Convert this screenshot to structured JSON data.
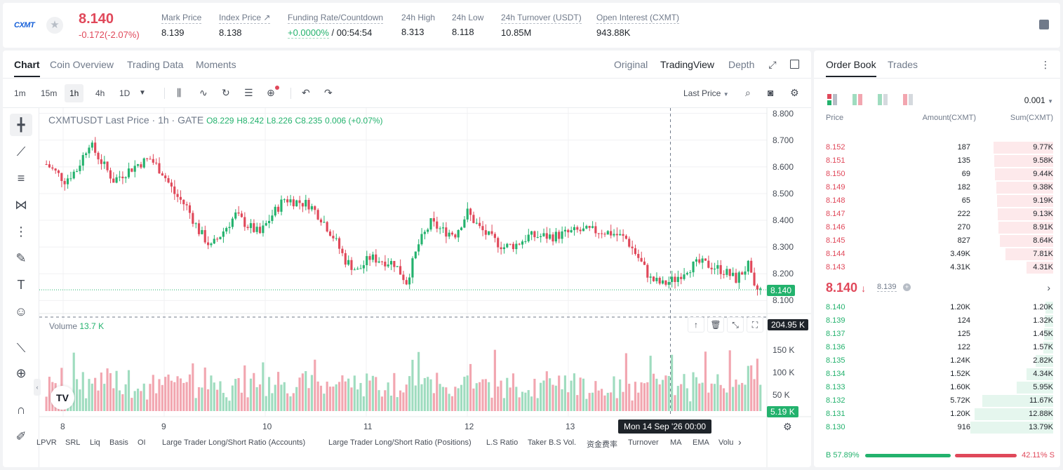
{
  "header": {
    "logo": "CXMT",
    "last_price": "8.140",
    "change": "-0.172(-2.07%)",
    "stats": [
      {
        "label": "Mark Price",
        "value": "8.139"
      },
      {
        "label": "Index Price ↗",
        "value": "8.138"
      },
      {
        "label": "Funding Rate/Countdown",
        "value": "+0.0000%",
        "value2": "/ 00:54:54"
      },
      {
        "label": "24h High",
        "value": "8.313"
      },
      {
        "label": "24h Low",
        "value": "8.118"
      },
      {
        "label": "24h Turnover (USDT)",
        "value": "10.85M"
      },
      {
        "label": "Open Interest (CXMT)",
        "value": "943.88K"
      }
    ]
  },
  "chart_panel": {
    "tabs": [
      "Chart",
      "Coin Overview",
      "Trading Data",
      "Moments"
    ],
    "view_tabs": [
      "Original",
      "TradingView",
      "Depth"
    ],
    "intervals": [
      "1m",
      "15m",
      "1h",
      "4h",
      "1D"
    ],
    "price_type": "Last Price",
    "legend": {
      "symbol": "CXMTUSDT Last Price · 1h · GATE",
      "o": "O8.229",
      "h": "H8.242",
      "l": "L8.226",
      "c": "C8.235",
      "chg": "0.006 (+0.07%)"
    },
    "volume_label": "Volume",
    "volume_value": "13.7 K",
    "last_price_tag": "8.140",
    "volume_tag": "204.95 K",
    "last_volume_tag": "5.19 K",
    "crosshair_time": "Mon 14 Sep '26   00:00",
    "indicators": [
      "LPVR",
      "SRL",
      "Liq",
      "Basis",
      "OI",
      "Large Trader Long/Short Ratio (Accounts)",
      "Large Trader Long/Short Ratio (Positions)",
      "L.S Ratio",
      "Taker B.S Vol.",
      "资金费率",
      "Turnover",
      "MA",
      "EMA",
      "Volu"
    ]
  },
  "chart_data": {
    "type": "candlestick",
    "symbol": "CXMTUSDT",
    "interval": "1h",
    "price_axis": [
      "8.800",
      "8.700",
      "8.600",
      "8.500",
      "8.400",
      "8.300",
      "8.200",
      "8.100"
    ],
    "volume_axis": [
      "150 K",
      "100 K",
      "50 K"
    ],
    "x_ticks": [
      "8",
      "9",
      "10",
      "11",
      "12",
      "13"
    ],
    "ylim": [
      8.08,
      8.82
    ],
    "vol_max": 225,
    "anchors": [
      [
        0,
        8.61
      ],
      [
        6,
        8.55
      ],
      [
        10,
        8.59
      ],
      [
        14,
        8.69
      ],
      [
        18,
        8.62
      ],
      [
        22,
        8.55
      ],
      [
        26,
        8.58
      ],
      [
        30,
        8.61
      ],
      [
        34,
        8.63
      ],
      [
        38,
        8.58
      ],
      [
        42,
        8.5
      ],
      [
        46,
        8.45
      ],
      [
        50,
        8.36
      ],
      [
        54,
        8.3
      ],
      [
        58,
        8.36
      ],
      [
        62,
        8.42
      ],
      [
        66,
        8.38
      ],
      [
        70,
        8.35
      ],
      [
        74,
        8.42
      ],
      [
        78,
        8.48
      ],
      [
        82,
        8.47
      ],
      [
        86,
        8.46
      ],
      [
        90,
        8.41
      ],
      [
        94,
        8.34
      ],
      [
        98,
        8.25
      ],
      [
        102,
        8.21
      ],
      [
        106,
        8.26
      ],
      [
        110,
        8.25
      ],
      [
        114,
        8.24
      ],
      [
        118,
        8.17
      ],
      [
        122,
        8.31
      ],
      [
        126,
        8.39
      ],
      [
        130,
        8.36
      ],
      [
        134,
        8.35
      ],
      [
        138,
        8.43
      ],
      [
        142,
        8.37
      ],
      [
        146,
        8.33
      ],
      [
        150,
        8.3
      ],
      [
        154,
        8.31
      ],
      [
        158,
        8.34
      ],
      [
        162,
        8.34
      ],
      [
        166,
        8.34
      ],
      [
        170,
        8.35
      ],
      [
        174,
        8.36
      ],
      [
        178,
        8.36
      ],
      [
        182,
        8.36
      ],
      [
        186,
        8.35
      ],
      [
        190,
        8.33
      ],
      [
        194,
        8.26
      ],
      [
        198,
        8.18
      ],
      [
        202,
        8.16
      ],
      [
        206,
        8.18
      ],
      [
        210,
        8.22
      ],
      [
        214,
        8.24
      ],
      [
        218,
        8.23
      ],
      [
        222,
        8.21
      ],
      [
        226,
        8.18
      ],
      [
        230,
        8.23
      ],
      [
        232,
        8.14
      ],
      [
        234,
        8.14
      ]
    ],
    "candle_count": 235,
    "crosshair_index": 205
  },
  "order_book": {
    "tabs": [
      "Order Book",
      "Trades"
    ],
    "precision": "0.001",
    "columns": [
      "Price",
      "Amount(CXMT)",
      "Sum(CXMT)"
    ],
    "asks": [
      {
        "price": "8.152",
        "amount": "187",
        "sum": "9.77K",
        "depth": 0.72
      },
      {
        "price": "8.151",
        "amount": "135",
        "sum": "9.58K",
        "depth": 0.71
      },
      {
        "price": "8.150",
        "amount": "69",
        "sum": "9.44K",
        "depth": 0.7
      },
      {
        "price": "8.149",
        "amount": "182",
        "sum": "9.38K",
        "depth": 0.69
      },
      {
        "price": "8.148",
        "amount": "65",
        "sum": "9.19K",
        "depth": 0.68
      },
      {
        "price": "8.147",
        "amount": "222",
        "sum": "9.13K",
        "depth": 0.67
      },
      {
        "price": "8.146",
        "amount": "270",
        "sum": "8.91K",
        "depth": 0.66
      },
      {
        "price": "8.145",
        "amount": "827",
        "sum": "8.64K",
        "depth": 0.64
      },
      {
        "price": "8.144",
        "amount": "3.49K",
        "sum": "7.81K",
        "depth": 0.58
      },
      {
        "price": "8.143",
        "amount": "4.31K",
        "sum": "4.31K",
        "depth": 0.32
      }
    ],
    "mid_price": "8.140",
    "mid_arrow": "↓",
    "mark_price": "8.139",
    "bids": [
      {
        "price": "8.140",
        "amount": "1.20K",
        "sum": "1.20K",
        "depth": 0.09
      },
      {
        "price": "8.139",
        "amount": "124",
        "sum": "1.32K",
        "depth": 0.1
      },
      {
        "price": "8.137",
        "amount": "125",
        "sum": "1.45K",
        "depth": 0.11
      },
      {
        "price": "8.136",
        "amount": "122",
        "sum": "1.57K",
        "depth": 0.12
      },
      {
        "price": "8.135",
        "amount": "1.24K",
        "sum": "2.82K",
        "depth": 0.21
      },
      {
        "price": "8.134",
        "amount": "1.52K",
        "sum": "4.34K",
        "depth": 0.32
      },
      {
        "price": "8.133",
        "amount": "1.60K",
        "sum": "5.95K",
        "depth": 0.44
      },
      {
        "price": "8.132",
        "amount": "5.72K",
        "sum": "11.67K",
        "depth": 0.86
      },
      {
        "price": "8.131",
        "amount": "1.20K",
        "sum": "12.88K",
        "depth": 0.95
      },
      {
        "price": "8.130",
        "amount": "916",
        "sum": "13.79K",
        "depth": 1.0
      }
    ],
    "buy_ratio": "B 57.89%",
    "sell_ratio": "42.11% S",
    "buy_fraction": 0.5789
  },
  "colors": {
    "up": "#23b26d",
    "down": "#e0485a",
    "up_vol": "#9fdcbf",
    "down_vol": "#f2a6b0",
    "accent": "#1660d8"
  }
}
